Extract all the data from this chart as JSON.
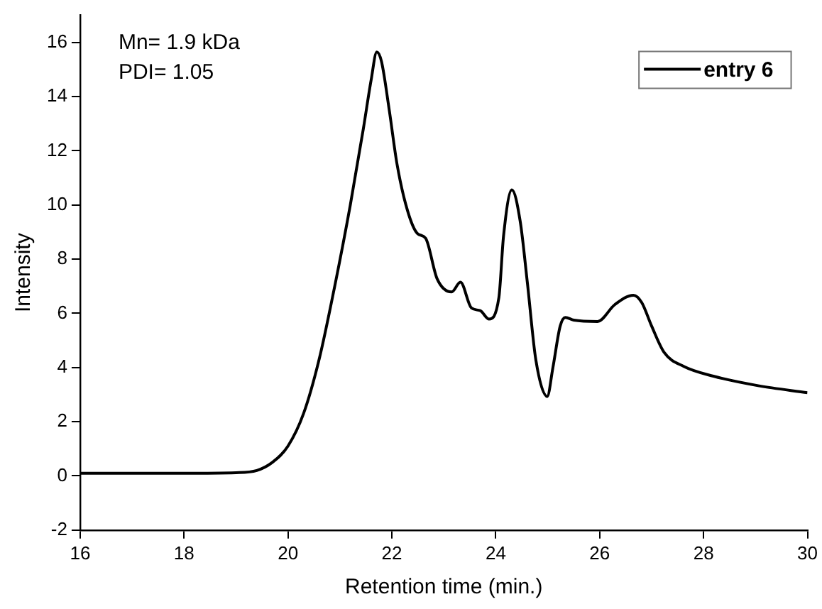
{
  "chart_data": {
    "type": "line",
    "xlabel": "Retention time (min.)",
    "ylabel": "Intensity",
    "annotations": [
      "Mn= 1.9 kDa",
      "PDI= 1.05"
    ],
    "x": [
      16,
      18,
      19,
      19.4,
      19.7,
      20,
      20.3,
      20.6,
      20.9,
      21.2,
      21.45,
      21.6,
      21.71,
      21.8,
      21.95,
      22.1,
      22.3,
      22.49,
      22.65,
      22.87,
      23.15,
      23.32,
      23.53,
      23.7,
      23.87,
      24.06,
      24.15,
      24.31,
      24.47,
      24.61,
      24.77,
      24.99,
      25.1,
      25.24,
      25.34,
      25.5,
      25.96,
      26.29,
      26.65,
      26.81,
      27.0,
      27.24,
      27.62,
      28.19,
      29.05,
      30
    ],
    "series": [
      {
        "name": "entry 6",
        "color": "#000000",
        "values": [
          0.1,
          0.1,
          0.12,
          0.2,
          0.5,
          1.1,
          2.3,
          4.3,
          7.0,
          10.0,
          12.8,
          14.6,
          15.65,
          15.3,
          13.5,
          11.5,
          9.8,
          8.95,
          8.77,
          7.28,
          6.79,
          7.15,
          6.2,
          6.1,
          5.79,
          6.58,
          8.86,
          10.56,
          9.4,
          7.1,
          4.3,
          2.93,
          4.0,
          5.53,
          5.85,
          5.75,
          5.7,
          6.32,
          6.67,
          6.4,
          5.53,
          4.56,
          4.04,
          3.68,
          3.33,
          3.07
        ]
      }
    ],
    "xlim": [
      16,
      30
    ],
    "xticks": [
      16,
      18,
      20,
      22,
      24,
      26,
      28,
      30
    ],
    "ylim": [
      -2,
      17
    ],
    "yticks": [
      -2,
      0,
      2,
      4,
      6,
      8,
      10,
      12,
      14,
      16
    ],
    "grid": false,
    "legend": "top right",
    "marker": "none",
    "line_style": "solid"
  }
}
